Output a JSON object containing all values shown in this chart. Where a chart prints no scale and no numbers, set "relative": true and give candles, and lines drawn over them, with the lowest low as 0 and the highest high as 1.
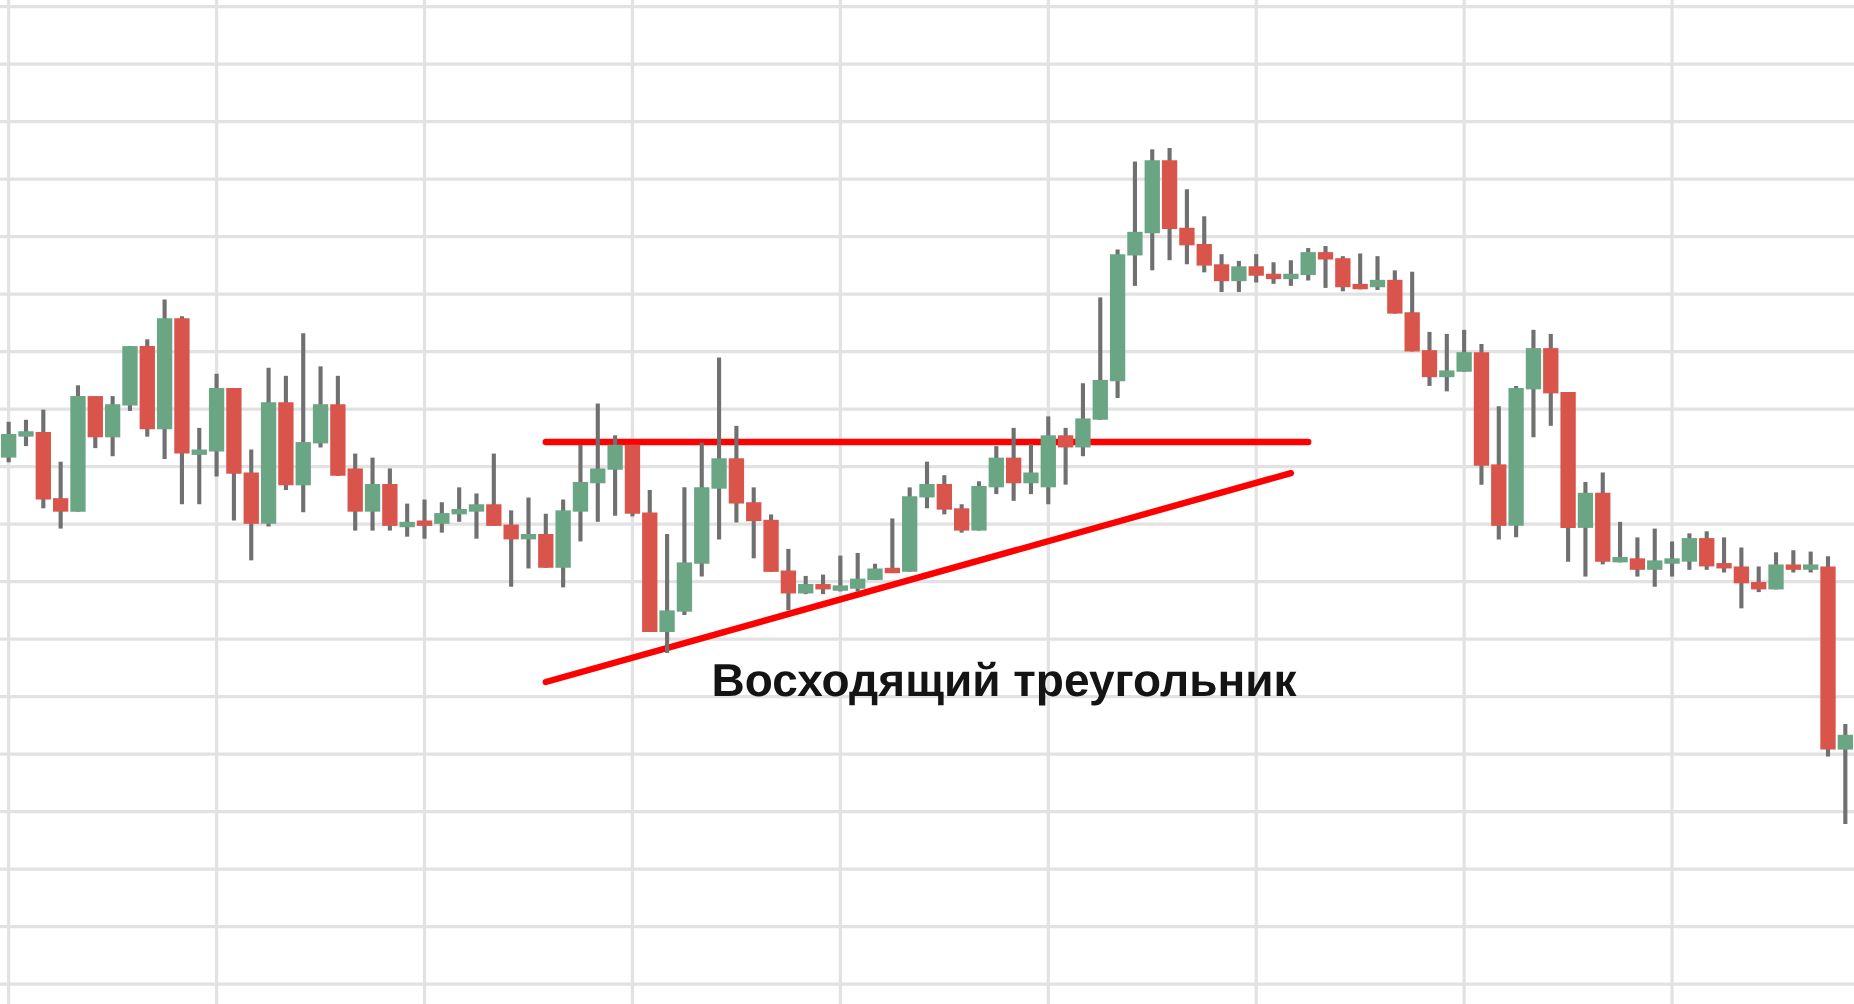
{
  "chart_data": {
    "type": "candlestick",
    "relative": true,
    "grid": true,
    "annotations": [
      "Восходящий треугольник"
    ],
    "categories": [
      null,
      null,
      null,
      null,
      null,
      null,
      null,
      null,
      null,
      null,
      null,
      null,
      null,
      null,
      null,
      null,
      null,
      null,
      null,
      null,
      null,
      null,
      null,
      null,
      null,
      null,
      null,
      null,
      null,
      null,
      null,
      null,
      null,
      null,
      null,
      null,
      null,
      null,
      null,
      null,
      null,
      null,
      null,
      null,
      null,
      null,
      null,
      null,
      null,
      null,
      null,
      null,
      null,
      null,
      null,
      null,
      null,
      null,
      null,
      null,
      null,
      null,
      null,
      null,
      null,
      null,
      null,
      null,
      null,
      null,
      null,
      null,
      null,
      null,
      null,
      null,
      null,
      null,
      null,
      null,
      null,
      null,
      null,
      null,
      null,
      null,
      null,
      null,
      null,
      null,
      null,
      null,
      null,
      null,
      null,
      null,
      null,
      null,
      null,
      null,
      null,
      null,
      null,
      null,
      null,
      null,
      null
    ],
    "ohlc": [
      [
        0.543,
        0.594,
        0.536,
        0.576
      ],
      [
        0.574,
        0.597,
        0.56,
        0.58
      ],
      [
        0.579,
        0.612,
        0.468,
        0.481
      ],
      [
        0.481,
        0.535,
        0.438,
        0.463
      ],
      [
        0.463,
        0.648,
        0.463,
        0.632
      ],
      [
        0.632,
        0.632,
        0.557,
        0.573
      ],
      [
        0.573,
        0.632,
        0.545,
        0.62
      ],
      [
        0.62,
        0.706,
        0.612,
        0.706
      ],
      [
        0.706,
        0.716,
        0.574,
        0.585
      ],
      [
        0.585,
        0.775,
        0.541,
        0.747
      ],
      [
        0.747,
        0.75,
        0.474,
        0.549
      ],
      [
        0.547,
        0.585,
        0.474,
        0.553
      ],
      [
        0.552,
        0.665,
        0.515,
        0.644
      ],
      [
        0.644,
        0.644,
        0.45,
        0.519
      ],
      [
        0.519,
        0.553,
        0.391,
        0.445
      ],
      [
        0.445,
        0.674,
        0.441,
        0.623
      ],
      [
        0.623,
        0.662,
        0.495,
        0.502
      ],
      [
        0.502,
        0.725,
        0.462,
        0.564
      ],
      [
        0.564,
        0.676,
        0.558,
        0.62
      ],
      [
        0.62,
        0.662,
        0.516,
        0.516
      ],
      [
        0.525,
        0.547,
        0.435,
        0.463
      ],
      [
        0.463,
        0.541,
        0.435,
        0.502
      ],
      [
        0.502,
        0.525,
        0.435,
        0.442
      ],
      [
        0.44,
        0.473,
        0.426,
        0.446
      ],
      [
        0.448,
        0.479,
        0.423,
        0.442
      ],
      [
        0.445,
        0.475,
        0.432,
        0.459
      ],
      [
        0.459,
        0.497,
        0.448,
        0.465
      ],
      [
        0.463,
        0.488,
        0.423,
        0.472
      ],
      [
        0.472,
        0.547,
        0.442,
        0.442
      ],
      [
        0.442,
        0.463,
        0.352,
        0.422
      ],
      [
        0.422,
        0.482,
        0.379,
        0.428
      ],
      [
        0.428,
        0.458,
        0.38,
        0.38
      ],
      [
        0.38,
        0.479,
        0.351,
        0.463
      ],
      [
        0.463,
        0.56,
        0.419,
        0.505
      ],
      [
        0.505,
        0.621,
        0.448,
        0.525
      ],
      [
        0.525,
        0.574,
        0.457,
        0.56
      ],
      [
        0.56,
        0.56,
        0.456,
        0.46
      ],
      [
        0.46,
        0.493,
        0.285,
        0.285
      ],
      [
        0.285,
        0.428,
        0.254,
        0.315
      ],
      [
        0.315,
        0.497,
        0.31,
        0.386
      ],
      [
        0.386,
        0.563,
        0.367,
        0.497
      ],
      [
        0.497,
        0.689,
        0.422,
        0.54
      ],
      [
        0.54,
        0.588,
        0.447,
        0.475
      ],
      [
        0.475,
        0.497,
        0.394,
        0.449
      ],
      [
        0.449,
        0.457,
        0.374,
        0.374
      ],
      [
        0.374,
        0.406,
        0.317,
        0.342
      ],
      [
        0.342,
        0.366,
        0.341,
        0.354
      ],
      [
        0.354,
        0.368,
        0.341,
        0.348
      ],
      [
        0.346,
        0.396,
        0.345,
        0.352
      ],
      [
        0.349,
        0.4,
        0.345,
        0.362
      ],
      [
        0.362,
        0.384,
        0.362,
        0.377
      ],
      [
        0.378,
        0.451,
        0.372,
        0.372
      ],
      [
        0.374,
        0.497,
        0.374,
        0.484
      ],
      [
        0.484,
        0.535,
        0.468,
        0.502
      ],
      [
        0.502,
        0.515,
        0.459,
        0.466
      ],
      [
        0.466,
        0.472,
        0.432,
        0.435
      ],
      [
        0.435,
        0.506,
        0.435,
        0.499
      ],
      [
        0.499,
        0.558,
        0.489,
        0.541
      ],
      [
        0.541,
        0.585,
        0.479,
        0.505
      ],
      [
        0.505,
        0.561,
        0.489,
        0.519
      ],
      [
        0.499,
        0.602,
        0.474,
        0.574
      ],
      [
        0.574,
        0.585,
        0.503,
        0.558
      ],
      [
        0.558,
        0.651,
        0.545,
        0.599
      ],
      [
        0.599,
        0.778,
        0.599,
        0.656
      ],
      [
        0.656,
        0.849,
        0.631,
        0.842
      ],
      [
        0.842,
        0.979,
        0.797,
        0.875
      ],
      [
        0.875,
        0.997,
        0.82,
        0.981
      ],
      [
        0.981,
        1,
        0.835,
        0.881
      ],
      [
        0.881,
        0.938,
        0.829,
        0.857
      ],
      [
        0.857,
        0.898,
        0.817,
        0.827
      ],
      [
        0.827,
        0.842,
        0.788,
        0.804
      ],
      [
        0.804,
        0.832,
        0.788,
        0.824
      ],
      [
        0.824,
        0.842,
        0.802,
        0.812
      ],
      [
        0.813,
        0.83,
        0.8,
        0.807
      ],
      [
        0.807,
        0.833,
        0.797,
        0.813
      ],
      [
        0.813,
        0.851,
        0.805,
        0.845
      ],
      [
        0.845,
        0.854,
        0.794,
        0.836
      ],
      [
        0.836,
        0.839,
        0.789,
        0.795
      ],
      [
        0.798,
        0.843,
        0.792,
        0.792
      ],
      [
        0.795,
        0.839,
        0.791,
        0.804
      ],
      [
        0.804,
        0.818,
        0.756,
        0.756
      ],
      [
        0.756,
        0.816,
        0.7,
        0.7
      ],
      [
        0.7,
        0.727,
        0.649,
        0.662
      ],
      [
        0.662,
        0.724,
        0.641,
        0.67
      ],
      [
        0.67,
        0.73,
        0.67,
        0.697
      ],
      [
        0.697,
        0.709,
        0.503,
        0.531
      ],
      [
        0.531,
        0.617,
        0.422,
        0.442
      ],
      [
        0.442,
        0.647,
        0.425,
        0.644
      ],
      [
        0.644,
        0.73,
        0.573,
        0.703
      ],
      [
        0.703,
        0.724,
        0.59,
        0.638
      ],
      [
        0.638,
        0.638,
        0.389,
        0.439
      ],
      [
        0.439,
        0.505,
        0.367,
        0.489
      ],
      [
        0.489,
        0.519,
        0.385,
        0.389
      ],
      [
        0.388,
        0.446,
        0.388,
        0.394
      ],
      [
        0.392,
        0.423,
        0.367,
        0.377
      ],
      [
        0.377,
        0.436,
        0.352,
        0.389
      ],
      [
        0.386,
        0.417,
        0.367,
        0.392
      ],
      [
        0.389,
        0.429,
        0.377,
        0.422
      ],
      [
        0.422,
        0.432,
        0.377,
        0.382
      ],
      [
        0.385,
        0.423,
        0.373,
        0.379
      ],
      [
        0.38,
        0.408,
        0.32,
        0.357
      ],
      [
        0.357,
        0.38,
        0.344,
        0.348
      ],
      [
        0.348,
        0.401,
        0.348,
        0.383
      ],
      [
        0.383,
        0.404,
        0.373,
        0.377
      ],
      [
        0.377,
        0.402,
        0.373,
        0.383
      ],
      [
        0.38,
        0.395,
        0.101,
        0.111
      ],
      [
        0.111,
        0.147,
        0,
        0.131
      ]
    ],
    "colors": [
      "#6aa584",
      "#6aa584",
      "#d9544a",
      "#d9544a",
      "#6aa584",
      "#d9544a",
      "#6aa584",
      "#6aa584",
      "#d9544a",
      "#6aa584",
      "#d9544a",
      "#6aa584",
      "#6aa584",
      "#d9544a",
      "#d9544a",
      "#6aa584",
      "#d9544a",
      "#6aa584",
      "#6aa584",
      "#d9544a",
      "#d9544a",
      "#6aa584",
      "#d9544a",
      "#6aa584",
      "#d9544a",
      "#6aa584",
      "#6aa584",
      "#6aa584",
      "#d9544a",
      "#d9544a",
      "#6aa584",
      "#d9544a",
      "#6aa584",
      "#6aa584",
      "#6aa584",
      "#6aa584",
      "#d9544a",
      "#d9544a",
      "#6aa584",
      "#6aa584",
      "#6aa584",
      "#6aa584",
      "#d9544a",
      "#d9544a",
      "#d9544a",
      "#d9544a",
      "#6aa584",
      "#d9544a",
      "#6aa584",
      "#6aa584",
      "#6aa584",
      "#d9544a",
      "#6aa584",
      "#6aa584",
      "#d9544a",
      "#d9544a",
      "#6aa584",
      "#6aa584",
      "#d9544a",
      "#6aa584",
      "#6aa584",
      "#d9544a",
      "#6aa584",
      "#6aa584",
      "#6aa584",
      "#6aa584",
      "#6aa584",
      "#d9544a",
      "#d9544a",
      "#d9544a",
      "#d9544a",
      "#6aa584",
      "#d9544a",
      "#d9544a",
      "#6aa584",
      "#6aa584",
      "#d9544a",
      "#d9544a",
      "#d9544a",
      "#6aa584",
      "#d9544a",
      "#d9544a",
      "#d9544a",
      "#6aa584",
      "#6aa584",
      "#d9544a",
      "#d9544a",
      "#6aa584",
      "#6aa584",
      "#d9544a",
      "#d9544a",
      "#6aa584",
      "#d9544a",
      "#6aa584",
      "#d9544a",
      "#6aa584",
      "#6aa584",
      "#6aa584",
      "#d9544a",
      "#d9544a",
      "#d9544a",
      "#d9544a",
      "#6aa584",
      "#d9544a",
      "#6aa584",
      "#d9544a",
      "#6aa584"
    ],
    "series": [
      {
        "type": "line",
        "color": "#ff0000",
        "values": [
          null,
          null,
          null,
          null,
          null,
          null,
          null,
          null,
          null,
          null,
          null,
          null,
          null,
          null,
          null,
          null,
          null,
          null,
          null,
          null,
          null,
          null,
          null,
          null,
          null,
          null,
          null,
          null,
          null,
          null,
          null,
          0.565,
          null,
          null,
          null,
          null,
          null,
          null,
          null,
          null,
          null,
          null,
          null,
          null,
          null,
          null,
          null,
          null,
          null,
          null,
          null,
          null,
          null,
          null,
          null,
          null,
          null,
          null,
          null,
          null,
          null,
          null,
          null,
          null,
          null,
          null,
          null,
          null,
          null,
          null,
          null,
          null,
          null,
          null,
          null,
          0.565,
          null,
          null,
          null,
          null,
          null,
          null,
          null,
          null,
          null,
          null,
          null,
          null,
          null,
          null,
          null,
          null,
          null,
          null,
          null,
          null,
          null,
          null,
          null,
          null,
          null,
          null,
          null,
          null,
          null,
          null,
          null
        ]
      },
      {
        "type": "line",
        "color": "#ff0000",
        "values": [
          null,
          null,
          null,
          null,
          null,
          null,
          null,
          null,
          null,
          null,
          null,
          null,
          null,
          null,
          null,
          null,
          null,
          null,
          null,
          null,
          null,
          null,
          null,
          null,
          null,
          null,
          null,
          null,
          null,
          null,
          null,
          0.21,
          null,
          null,
          null,
          null,
          null,
          null,
          null,
          null,
          null,
          null,
          null,
          null,
          null,
          null,
          null,
          null,
          null,
          null,
          null,
          null,
          null,
          null,
          null,
          null,
          null,
          null,
          null,
          null,
          null,
          null,
          null,
          null,
          null,
          null,
          null,
          null,
          null,
          null,
          null,
          null,
          null,
          null,
          0.519,
          null,
          null,
          null,
          null,
          null,
          null,
          null,
          null,
          null,
          null,
          null,
          null,
          null,
          null,
          null,
          null,
          null,
          null,
          null,
          null,
          null,
          null,
          null,
          null,
          null,
          null,
          null,
          null,
          null,
          null,
          null,
          null
        ]
      }
    ]
  }
}
